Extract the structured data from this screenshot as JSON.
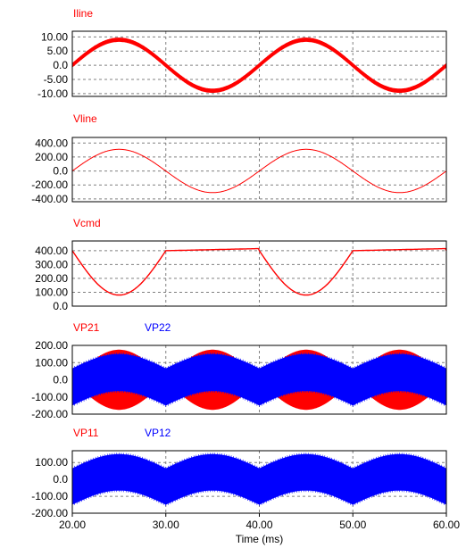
{
  "colors": {
    "red": "#ff0000",
    "blue": "#0000ff",
    "grid": "#808080",
    "frame": "#000000"
  },
  "xaxis": {
    "label": "Time (ms)",
    "range": [
      20,
      60
    ],
    "ticks": [
      20,
      30,
      40,
      50,
      60
    ],
    "tick_labels": [
      "20.00",
      "30.00",
      "40.00",
      "50.00",
      "60.00"
    ]
  },
  "chart_data": [
    {
      "type": "line",
      "series": [
        {
          "name": "Iline",
          "color": "#ff0000",
          "amplitude": 9.0,
          "ripple": 0.6,
          "frequency_hz": 50,
          "kind": "sine"
        }
      ],
      "x_range": [
        20,
        60
      ],
      "ylim": [
        -11,
        12
      ],
      "ticks": [
        10,
        5,
        0,
        -5,
        -10
      ],
      "tick_labels": [
        "10.00",
        "5.00",
        "0.0",
        "-5.00",
        "-10.00"
      ],
      "grid": true
    },
    {
      "type": "line",
      "series": [
        {
          "name": "Vline",
          "color": "#ff0000",
          "amplitude": 310,
          "frequency_hz": 50,
          "kind": "sine"
        }
      ],
      "x_range": [
        20,
        60
      ],
      "ylim": [
        -440,
        480
      ],
      "ticks": [
        400,
        200,
        0,
        -200,
        -400
      ],
      "tick_labels": [
        "400.00",
        "200.00",
        "0.0",
        "-200.00",
        "-400.00"
      ],
      "grid": true
    },
    {
      "type": "line",
      "series": [
        {
          "name": "Vcmd",
          "color": "#ff0000",
          "kind": "rectified",
          "valley": 80,
          "peak": 400,
          "flat_end": 415
        }
      ],
      "x_range": [
        20,
        60
      ],
      "ylim": [
        0,
        470
      ],
      "ticks": [
        400,
        300,
        200,
        100,
        0
      ],
      "tick_labels": [
        "400.00",
        "300.00",
        "200.00",
        "100.00",
        "0.0"
      ],
      "grid": true
    },
    {
      "type": "area",
      "series": [
        {
          "name": "VP21",
          "color": "#ff0000",
          "amplitude": 175,
          "kind": "pwm-envelope"
        },
        {
          "name": "VP22",
          "color": "#0000ff",
          "amplitude": 150,
          "kind": "pwm-band"
        }
      ],
      "x_range": [
        20,
        60
      ],
      "ylim": [
        -200,
        200
      ],
      "ticks": [
        200,
        100,
        0,
        -100,
        -200
      ],
      "tick_labels": [
        "200.00",
        "100.00",
        "0.0",
        "-100.00",
        "-200.00"
      ],
      "grid": true
    },
    {
      "type": "area",
      "series": [
        {
          "name": "VP11",
          "color": "#ff0000",
          "kind": "hidden"
        },
        {
          "name": "VP12",
          "color": "#0000ff",
          "amplitude": 150,
          "kind": "pwm-band"
        }
      ],
      "x_range": [
        20,
        60
      ],
      "ylim": [
        -200,
        170
      ],
      "ticks": [
        100,
        0,
        -100,
        -200
      ],
      "tick_labels": [
        "100.00",
        "0.0",
        "-100.00",
        "-200.00"
      ],
      "grid": true
    }
  ]
}
